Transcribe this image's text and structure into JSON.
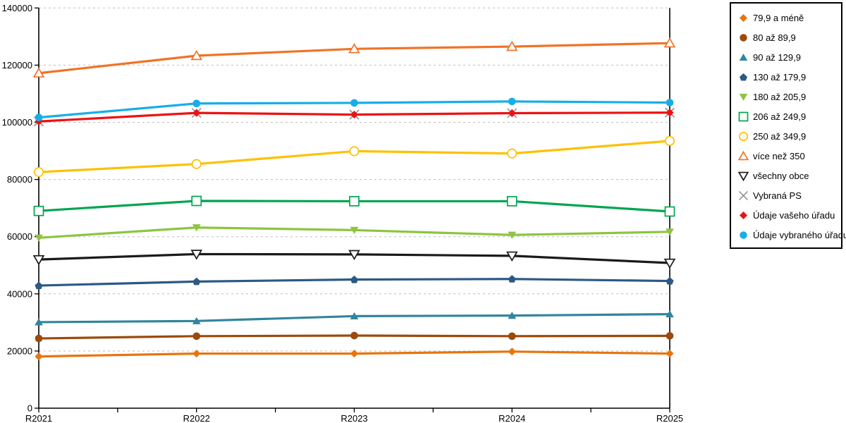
{
  "chart_data": {
    "type": "line",
    "x": [
      "R2021",
      "R2022",
      "R2023",
      "R2024",
      "R2025"
    ],
    "ylim": [
      0,
      140000
    ],
    "y_tick_step": 20000,
    "y_tick_labels": [
      "0",
      "20000",
      "40000",
      "60000",
      "80000",
      "100000",
      "120000",
      "140000"
    ],
    "grid": true,
    "grid_color": "#bdbdbd",
    "axis_color": "#000000",
    "legend_position": "right",
    "series": [
      {
        "name": "79,9 a méně",
        "color": "#E8740E",
        "marker": "diamond",
        "values": [
          18100,
          19100,
          19100,
          19800,
          19100
        ]
      },
      {
        "name": "80 až 89,9",
        "color": "#9C4A0B",
        "marker": "circle",
        "values": [
          24400,
          25200,
          25400,
          25200,
          25300
        ]
      },
      {
        "name": "90 až 129,9",
        "color": "#31859C",
        "marker": "triangle-up",
        "values": [
          30100,
          30500,
          32200,
          32400,
          32900
        ]
      },
      {
        "name": "130 až 179,9",
        "color": "#2C5985",
        "marker": "pentagon",
        "values": [
          42900,
          44300,
          45000,
          45200,
          44500
        ]
      },
      {
        "name": "180 až 205,9",
        "color": "#8CC540",
        "marker": "triangle-down",
        "values": [
          59600,
          63200,
          62300,
          60600,
          61700
        ]
      },
      {
        "name": "206 až 249,9",
        "color": "#00A550",
        "marker": "square-open",
        "values": [
          69000,
          72500,
          72400,
          72400,
          68800
        ]
      },
      {
        "name": "250 až 349,9",
        "color": "#FFC000",
        "marker": "circle-open",
        "values": [
          82600,
          85400,
          89900,
          89100,
          93500
        ]
      },
      {
        "name": "více než 350",
        "color": "#F07327",
        "marker": "triangle-up-open",
        "values": [
          117200,
          123300,
          125700,
          126500,
          127700
        ]
      },
      {
        "name": "všechny obce",
        "color": "#1A1A1A",
        "marker": "triangle-down-open",
        "values": [
          52000,
          53900,
          53800,
          53300,
          50800
        ]
      },
      {
        "name": "Vybraná PS",
        "color": "#8C8C8C",
        "marker": "x",
        "values": [
          100300,
          103300,
          102700,
          103200,
          103400
        ]
      },
      {
        "name": "Údaje vašeho úřadu",
        "color": "#EE1111",
        "marker": "diamond",
        "values": [
          100300,
          103300,
          102700,
          103200,
          103400
        ]
      },
      {
        "name": "Údaje vybraného úřadu",
        "color": "#17AEE8",
        "marker": "circle",
        "values": [
          101700,
          106600,
          106800,
          107300,
          106900
        ]
      }
    ]
  }
}
